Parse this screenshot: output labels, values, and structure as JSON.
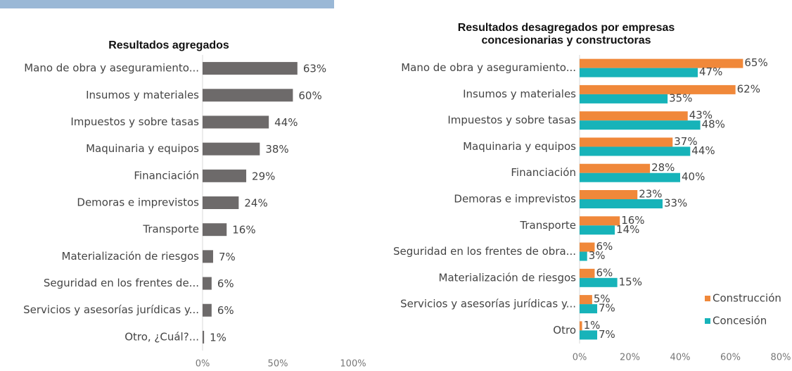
{
  "chart_data": [
    {
      "type": "bar",
      "orientation": "horizontal",
      "title": "Resultados agregados",
      "categories": [
        "Mano de obra y aseguramiento...",
        "Insumos y materiales",
        "Impuestos y sobre tasas",
        "Maquinaria y equipos",
        "Financiación",
        "Demoras e imprevistos",
        "Transporte",
        "Materialización de riesgos",
        "Seguridad en los frentes de...",
        "Servicios y asesorías jurídicas y...",
        "Otro, ¿Cuál?..."
      ],
      "values": [
        63,
        60,
        44,
        38,
        29,
        24,
        16,
        7,
        6,
        6,
        1
      ],
      "value_labels": [
        "63%",
        "60%",
        "44%",
        "38%",
        "29%",
        "24%",
        "16%",
        "7%",
        "6%",
        "6%",
        "1%"
      ],
      "color": "#6d6a6a",
      "xlim": [
        0,
        100
      ],
      "xticks": [
        {
          "value": 0,
          "label": "0%"
        },
        {
          "value": 50,
          "label": "50%"
        },
        {
          "value": 100,
          "label": "100%"
        }
      ]
    },
    {
      "type": "grouped_bar",
      "orientation": "horizontal",
      "title": [
        "Resultados desagregados por empresas",
        "concesionarias y constructoras"
      ],
      "categories": [
        "Mano de obra y aseguramiento...",
        "Insumos y materiales",
        "Impuestos y sobre tasas",
        "Maquinaria y equipos",
        "Financiación",
        "Demoras e imprevistos",
        "Transporte",
        "Seguridad en los frentes de obra...",
        "Materialización de riesgos",
        "Servicios y asesorías jurídicas y...",
        "Otro"
      ],
      "series": [
        {
          "name": "Construcción",
          "color": "#f0883a",
          "values": [
            65,
            62,
            43,
            37,
            28,
            23,
            16,
            6,
            6,
            5,
            1
          ],
          "value_labels": [
            "65%",
            "62%",
            "43%",
            "37%",
            "28%",
            "23%",
            "16%",
            "6%",
            "6%",
            "5%",
            "1%"
          ]
        },
        {
          "name": "Concesión",
          "color": "#17b3b9",
          "values": [
            47,
            35,
            48,
            44,
            40,
            33,
            14,
            3,
            15,
            7,
            7
          ],
          "value_labels": [
            "47%",
            "35%",
            "48%",
            "44%",
            "40%",
            "33%",
            "14%",
            "3%",
            "15%",
            "7%",
            "7%"
          ]
        }
      ],
      "xlim": [
        0,
        80
      ],
      "xticks": [
        {
          "value": 0,
          "label": "0%"
        },
        {
          "value": 20,
          "label": "20%"
        },
        {
          "value": 40,
          "label": "40%"
        },
        {
          "value": 60,
          "label": "60%"
        },
        {
          "value": 80,
          "label": "80%"
        }
      ],
      "legend": "lower right"
    }
  ]
}
